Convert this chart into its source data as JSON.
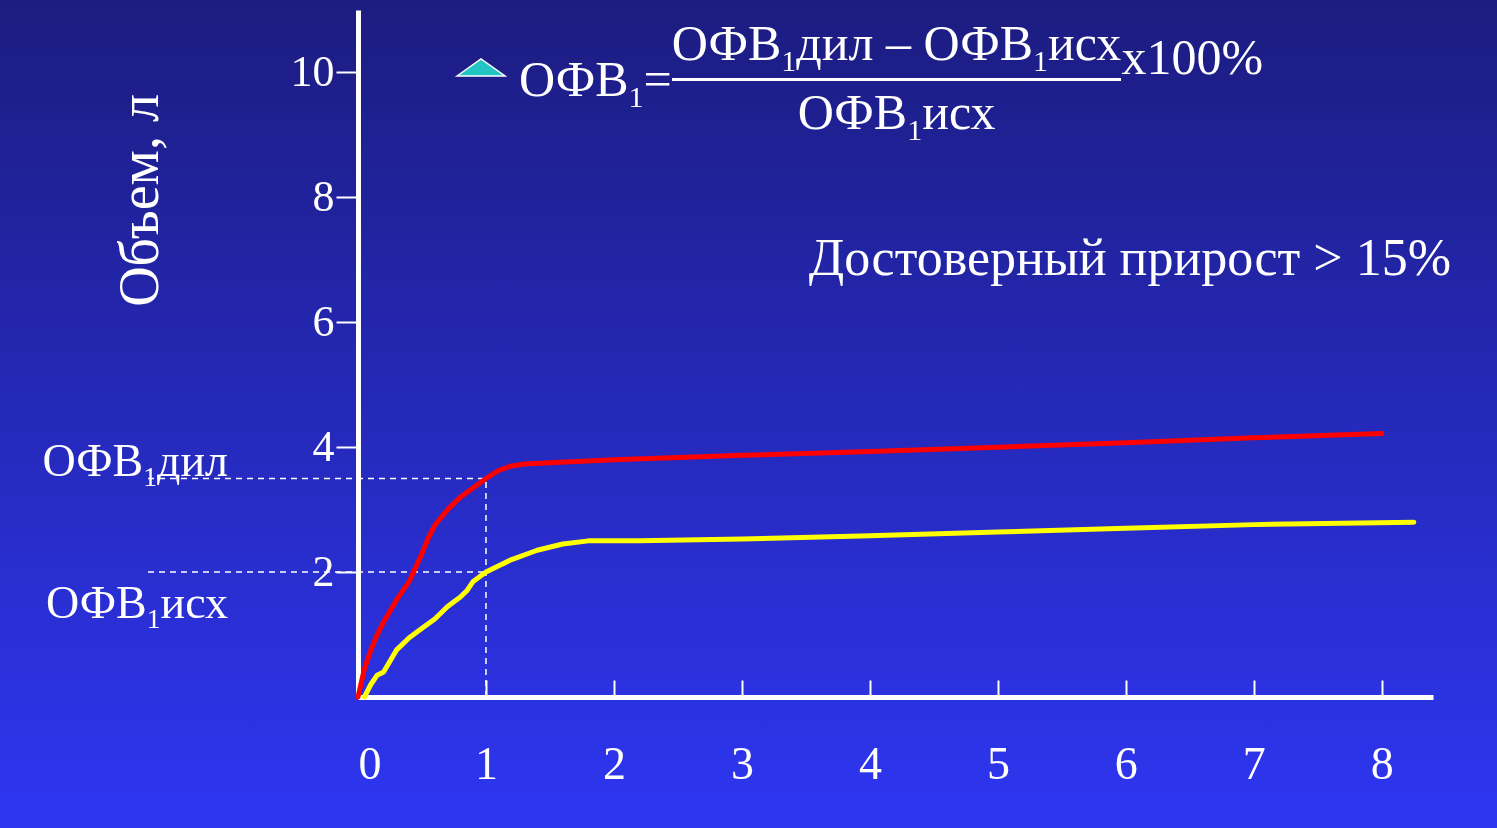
{
  "chart_data": {
    "type": "line",
    "ylabel": "Объем, л",
    "xlim": [
      0,
      8.4
    ],
    "ylim": [
      0,
      11
    ],
    "xticks": [
      0,
      1,
      2,
      3,
      4,
      5,
      6,
      7,
      8
    ],
    "yticks": [
      2,
      4,
      6,
      8,
      10
    ],
    "grid": false,
    "marker": "none",
    "line_style": "solid",
    "series": [
      {
        "color": "#ff0000",
        "x": [
          0,
          0.05,
          0.1,
          0.15,
          0.2,
          0.3,
          0.4,
          0.5,
          0.55,
          0.6,
          0.7,
          0.8,
          0.9,
          1.0,
          1.1,
          1.2,
          1.3,
          1.5,
          2,
          3,
          4,
          5,
          6,
          7,
          8
        ],
        "values": [
          0,
          0.45,
          0.75,
          1.0,
          1.2,
          1.55,
          1.85,
          2.3,
          2.55,
          2.75,
          3.0,
          3.2,
          3.35,
          3.5,
          3.63,
          3.7,
          3.73,
          3.75,
          3.8,
          3.87,
          3.93,
          4.0,
          4.07,
          4.15,
          4.22
        ]
      },
      {
        "color": "#ffff00",
        "x": [
          0.05,
          0.1,
          0.15,
          0.2,
          0.3,
          0.4,
          0.5,
          0.6,
          0.7,
          0.8,
          0.85,
          0.9,
          1.0,
          1.1,
          1.2,
          1.4,
          1.6,
          1.8,
          2.0,
          2.2,
          3,
          4,
          5,
          6,
          7,
          8.25
        ],
        "values": [
          0,
          0.2,
          0.35,
          0.4,
          0.75,
          0.95,
          1.1,
          1.25,
          1.45,
          1.6,
          1.7,
          1.85,
          2.0,
          2.1,
          2.2,
          2.35,
          2.45,
          2.5,
          2.5,
          2.5,
          2.53,
          2.58,
          2.64,
          2.7,
          2.76,
          2.8
        ]
      }
    ],
    "ref_lines": [
      {
        "axis": "y",
        "value": 3.5,
        "label": "ОФВ$_{1}$дил",
        "color": "#ffffff",
        "line_style": "dashed"
      },
      {
        "axis": "y",
        "value": 2,
        "label": "ОФВ$_{1}$исх",
        "color": "#ffffff",
        "line_style": "dashed"
      },
      {
        "axis": "x",
        "value": 1,
        "color": "#ffffff",
        "line_style": "dashed"
      }
    ],
    "annotations": [
      "ОФВ$_{1}$=",
      "ОФВ$_{1}$дил – ОФВ$_{1}$исх",
      "ОФВ$_{1}$исх",
      "x100%",
      "Достоверный прирост > 15%"
    ]
  }
}
